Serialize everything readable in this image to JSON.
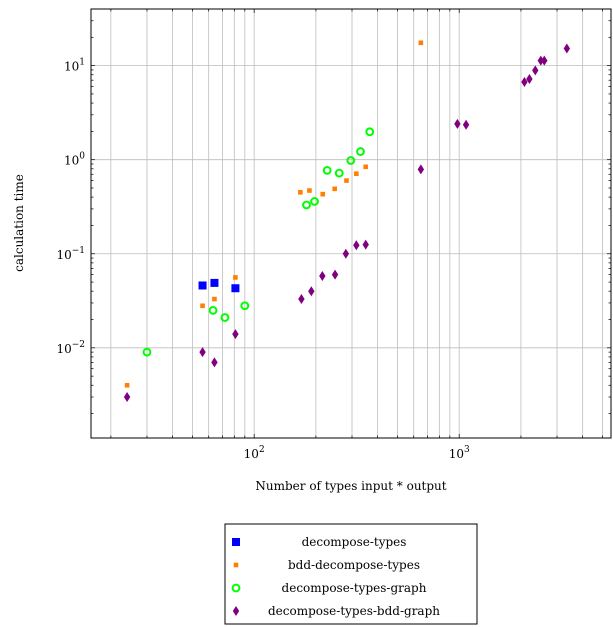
{
  "chart_data": {
    "type": "scatter",
    "title": "",
    "xlabel": "Number of types input * output",
    "ylabel": "calculation time",
    "xscale": "log",
    "yscale": "log",
    "xlim": [
      16,
      5500
    ],
    "ylim": [
      0.0011,
      40
    ],
    "grid": "both major and minor on x, major on y",
    "x_ticks": [
      {
        "value": 100,
        "base": "10",
        "exp": "2"
      },
      {
        "value": 1000,
        "base": "10",
        "exp": "3"
      }
    ],
    "y_ticks": [
      {
        "value": 0.01,
        "base": "10",
        "exp": "−2"
      },
      {
        "value": 0.1,
        "base": "10",
        "exp": "−1"
      },
      {
        "value": 1,
        "base": "10",
        "exp": "0"
      },
      {
        "value": 10,
        "base": "10",
        "exp": "1"
      }
    ],
    "legend_position": "bottom-center",
    "series": [
      {
        "name": "decompose-types",
        "marker": "square",
        "color": "#0000ff",
        "points": [
          [
            56,
            0.046
          ],
          [
            64,
            0.049
          ],
          [
            81,
            0.043
          ]
        ]
      },
      {
        "name": "bdd-decompose-types",
        "marker": "small-square",
        "color": "#ff8000",
        "points": [
          [
            24,
            0.004
          ],
          [
            56,
            0.028
          ],
          [
            64,
            0.033
          ],
          [
            81,
            0.056
          ],
          [
            168,
            0.45
          ],
          [
            186,
            0.47
          ],
          [
            216,
            0.43
          ],
          [
            247,
            0.49
          ],
          [
            282,
            0.6
          ],
          [
            315,
            0.71
          ],
          [
            350,
            0.84
          ],
          [
            650,
            17.5
          ]
        ]
      },
      {
        "name": "decompose-types-graph",
        "marker": "ring",
        "color": "#00ff00",
        "points": [
          [
            30,
            0.009
          ],
          [
            63,
            0.025
          ],
          [
            72,
            0.021
          ],
          [
            90,
            0.028
          ],
          [
            180,
            0.33
          ],
          [
            197,
            0.36
          ],
          [
            227,
            0.77
          ],
          [
            260,
            0.72
          ],
          [
            296,
            0.98
          ],
          [
            330,
            1.22
          ],
          [
            366,
            1.98
          ]
        ]
      },
      {
        "name": "decompose-types-bdd-graph",
        "marker": "diamond",
        "color": "#800080",
        "points": [
          [
            24,
            0.003
          ],
          [
            56,
            0.009
          ],
          [
            64,
            0.007
          ],
          [
            81,
            0.014
          ],
          [
            170,
            0.033
          ],
          [
            190,
            0.04
          ],
          [
            215,
            0.058
          ],
          [
            248,
            0.06
          ],
          [
            280,
            0.1
          ],
          [
            315,
            0.123
          ],
          [
            350,
            0.125
          ],
          [
            650,
            0.79
          ],
          [
            980,
            2.4
          ],
          [
            1080,
            2.35
          ],
          [
            2080,
            6.7
          ],
          [
            2200,
            7.2
          ],
          [
            2350,
            8.9
          ],
          [
            2500,
            11.3
          ],
          [
            2600,
            11.3
          ],
          [
            3350,
            15.2
          ]
        ]
      }
    ]
  }
}
